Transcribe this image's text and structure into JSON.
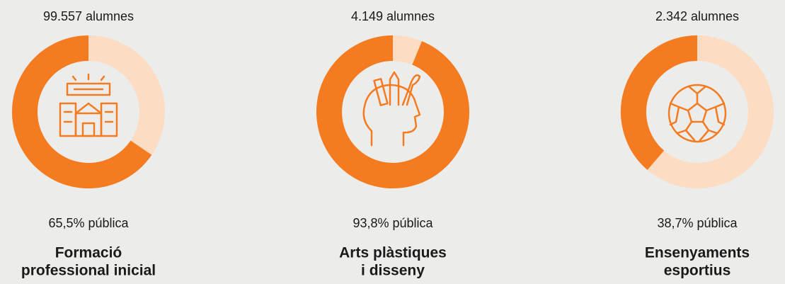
{
  "chart_data": [
    {
      "type": "donut",
      "subtitle": "99.557 alumnes",
      "title": [
        "Formació",
        "professional inicial"
      ],
      "values": [
        65.5
      ],
      "value_labels": [
        "65,5% pública"
      ],
      "color": "#f47b20",
      "rest_color": "#fcdcc3"
    },
    {
      "type": "donut",
      "subtitle": "4.149 alumnes",
      "title": [
        "Arts plàstiques",
        "i disseny"
      ],
      "values": [
        93.8
      ],
      "value_labels": [
        "93,8% pública"
      ],
      "color": "#f47b20",
      "rest_color": "#fcdcc3"
    },
    {
      "type": "donut",
      "subtitle": "2.342 alumnes",
      "title": [
        "Ensenyaments",
        "esportius"
      ],
      "values": [
        38.7
      ],
      "value_labels": [
        "38,7% pública"
      ],
      "color": "#f47b20",
      "rest_color": "#fcdcc3"
    }
  ]
}
